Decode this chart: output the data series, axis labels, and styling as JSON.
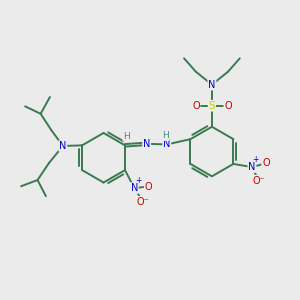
{
  "background_color": "#ebebeb",
  "fig_width": 3.0,
  "fig_height": 3.0,
  "dpi": 100,
  "atom_colors": {
    "C": "#3a7a50",
    "N": "#0000cc",
    "O": "#cc0000",
    "S": "#cccc00",
    "H": "#4a8888"
  },
  "bond_color": "#3a7a50",
  "line_width": 1.4
}
